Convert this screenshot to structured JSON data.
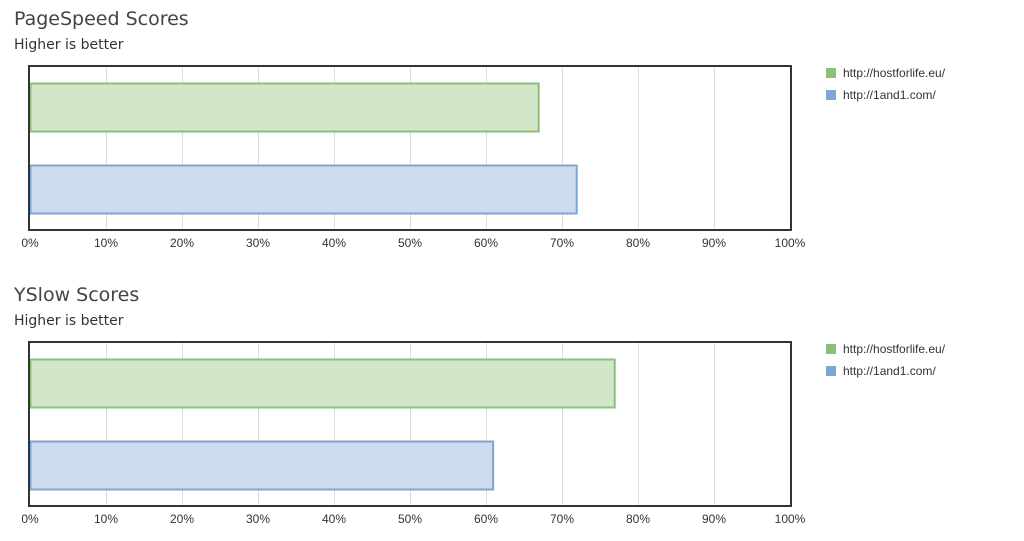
{
  "charts": [
    {
      "title": "PageSpeed Scores",
      "subtitle": "Higher is better",
      "legend": [
        {
          "label": "http://hostforlife.eu/",
          "color": "#8cc07a"
        },
        {
          "label": "http://1and1.com/",
          "color": "#7ea6d4"
        }
      ]
    },
    {
      "title": "YSlow Scores",
      "subtitle": "Higher is better",
      "legend": [
        {
          "label": "http://hostforlife.eu/",
          "color": "#8cc07a"
        },
        {
          "label": "http://1and1.com/",
          "color": "#7ea6d4"
        }
      ]
    }
  ],
  "chart_data": [
    {
      "type": "bar",
      "orientation": "horizontal",
      "title": "PageSpeed Scores",
      "subtitle": "Higher is better",
      "series": [
        {
          "name": "http://hostforlife.eu/",
          "values": [
            67
          ],
          "fill": "#d2e6c9",
          "stroke": "#8cc07a"
        },
        {
          "name": "http://1and1.com/",
          "values": [
            72
          ],
          "fill": "#ccdcee",
          "stroke": "#7ea6d4"
        }
      ],
      "xlim": [
        0,
        100
      ],
      "x_ticks": [
        "0%",
        "10%",
        "20%",
        "30%",
        "40%",
        "50%",
        "60%",
        "70%",
        "80%",
        "90%",
        "100%"
      ],
      "grid": true,
      "legend_position": "right"
    },
    {
      "type": "bar",
      "orientation": "horizontal",
      "title": "YSlow Scores",
      "subtitle": "Higher is better",
      "series": [
        {
          "name": "http://hostforlife.eu/",
          "values": [
            77
          ],
          "fill": "#d2e6c9",
          "stroke": "#8cc07a"
        },
        {
          "name": "http://1and1.com/",
          "values": [
            61
          ],
          "fill": "#ccdcee",
          "stroke": "#7ea6d4"
        }
      ],
      "xlim": [
        0,
        100
      ],
      "x_ticks": [
        "0%",
        "10%",
        "20%",
        "30%",
        "40%",
        "50%",
        "60%",
        "70%",
        "80%",
        "90%",
        "100%"
      ],
      "grid": true,
      "legend_position": "right"
    }
  ]
}
